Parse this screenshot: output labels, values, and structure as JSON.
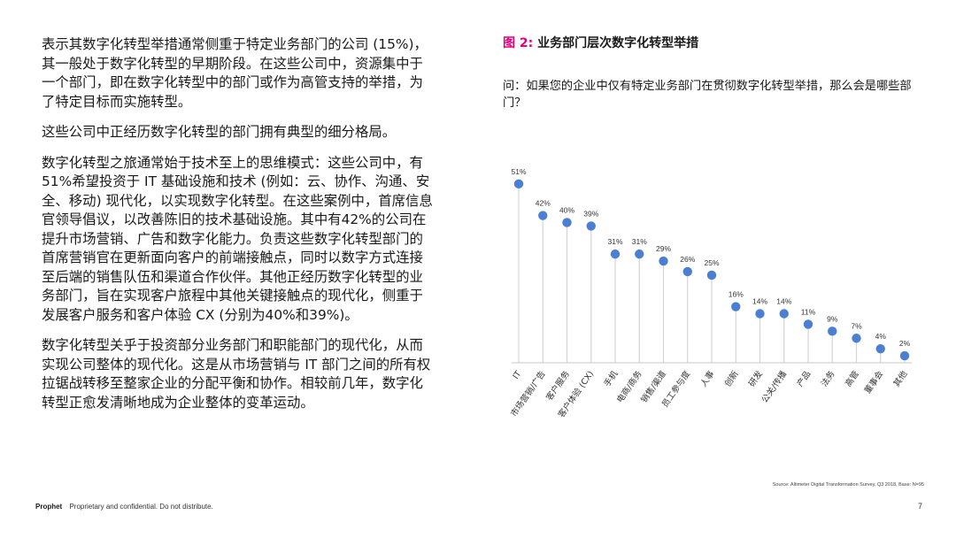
{
  "body_text": {
    "p1": "表示其数字化转型举措通常侧重于特定业务部门的公司 (15%)，其一般处于数字化转型的早期阶段。在这些公司中，资源集中于一个部门，即在数字化转型中的部门或作为高管支持的举措，为了特定目标而实施转型。",
    "p2": "这些公司中正经历数字化转型的部门拥有典型的细分格局。",
    "p3": "数字化转型之旅通常始于技术至上的思维模式：这些公司中，有51%希望投资于 IT 基础设施和技术 (例如：云、协作、沟通、安全、移动) 现代化，以实现数字化转型。在这些案例中，首席信息官领导倡议，以改善陈旧的技术基础设施。其中有42%的公司在提升市场营销、广告和数字化能力。负责这些数字化转型部门的首席营销官在更新面向客户的前端接触点，同时以数字方式连接至后端的销售队伍和渠道合作伙伴。其他正经历数字化转型的业务部门，旨在实现客户旅程中其他关键接触点的现代化，侧重于发展客户服务和客户体验 CX (分别为40%和39%)。",
    "p4": "数字化转型关乎于投资部分业务部门和职能部门的现代化，从而实现公司整体的现代化。这是从市场营销与 IT 部门之间的所有权拉锯战转移至整家企业的分配平衡和协作。相较前几年，数字化转型正愈发清晰地成为企业整体的变革运动。"
  },
  "figure": {
    "number_label": "图 2:",
    "title": "业务部门层次数字化转型举措",
    "question": "问：如果您的企业中仅有特定业务部门在贯彻数字化转型举措，那么会是哪些部门？"
  },
  "chart_data": {
    "type": "lollipop",
    "categories": [
      "IT",
      "市场营销/广告",
      "客户服务",
      "客户体验 (CX)",
      "手机",
      "电商/商务",
      "销售/渠道",
      "员工参与度",
      "人事",
      "创新",
      "研发",
      "公关/传播",
      "产品",
      "法务",
      "高管",
      "董事会",
      "其他"
    ],
    "values": [
      51,
      42,
      40,
      39,
      31,
      31,
      29,
      26,
      25,
      16,
      14,
      14,
      11,
      9,
      7,
      4,
      2
    ],
    "value_suffix": "%",
    "ylim": [
      0,
      55
    ],
    "grid": false,
    "colors": {
      "dot": "#4a7fd4",
      "stem": "#d4d4d4",
      "baseline": "#c8c8c8"
    }
  },
  "source": "Source: Altimeter Digital Transformation Survey, Q3 2018, Base: N=95",
  "footer": {
    "brand": "Prophet",
    "notice": "Proprietary and confidential. Do not distribute.",
    "page": "7"
  },
  "colors": {
    "accent": "#e2007a",
    "text": "#1a1a1a"
  }
}
